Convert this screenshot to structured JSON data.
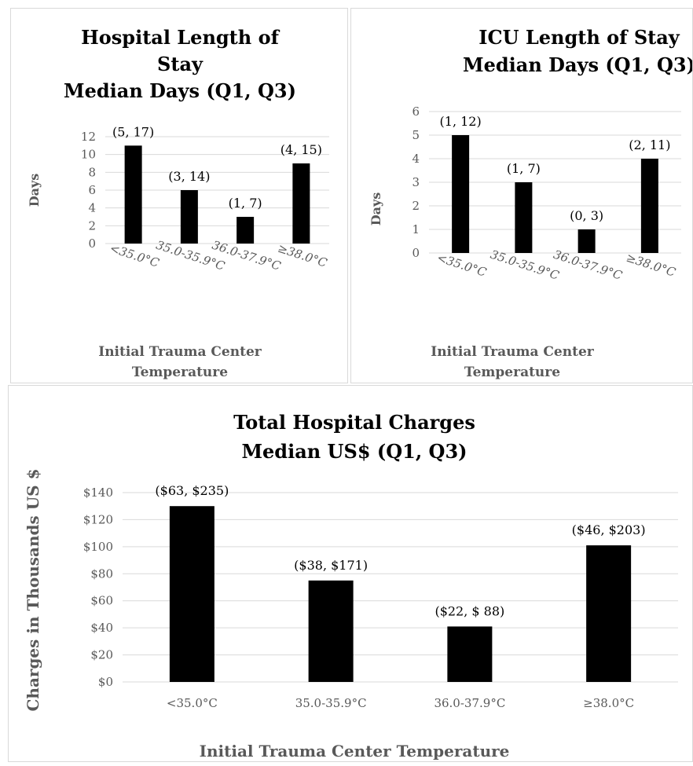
{
  "chart_data": [
    {
      "type": "bar",
      "title_lines": [
        "Hospital Length of",
        "Stay",
        "Median Days (Q1, Q3)"
      ],
      "categories": [
        "<35.0°C",
        "35.0-35.9°C",
        "36.0-37.9°C",
        "≥38.0°C"
      ],
      "values": [
        11,
        6,
        3,
        9
      ],
      "data_labels": [
        "(5, 17)",
        "(3, 14)",
        "(1, 7)",
        "(4, 15)"
      ],
      "ylabel": "Days",
      "xlabel_lines": [
        "Initial Trauma Center",
        "Temperature"
      ],
      "ylim": [
        0,
        12
      ],
      "yticks": [
        "0",
        "2",
        "4",
        "6",
        "8",
        "10",
        "12"
      ],
      "grid": true,
      "legend": "none"
    },
    {
      "type": "bar",
      "title_lines": [
        "ICU Length of Stay",
        "Median Days (Q1, Q3)"
      ],
      "categories": [
        "<35.0°C",
        "35.0-35.9°C",
        "36.0-37.9°C",
        "≥38.0°C"
      ],
      "values": [
        5,
        3,
        1,
        4
      ],
      "data_labels": [
        "(1, 12)",
        "(1, 7)",
        "(0, 3)",
        "(2, 11)"
      ],
      "ylabel": "Days",
      "xlabel_lines": [
        "Initial Trauma Center",
        "Temperature"
      ],
      "ylim": [
        0,
        6
      ],
      "yticks": [
        "0",
        "1",
        "2",
        "3",
        "4",
        "5",
        "6"
      ],
      "grid": true,
      "legend": "none"
    },
    {
      "type": "bar",
      "title_lines": [
        "Total Hospital Charges",
        "Median US$ (Q1, Q3)"
      ],
      "categories": [
        "<35.0°C",
        "35.0-35.9°C",
        "36.0-37.9°C",
        "≥38.0°C"
      ],
      "values": [
        130,
        75,
        41,
        101
      ],
      "data_labels": [
        "($63, $235)",
        "($38, $171)",
        "($22, $ 88)",
        "($46, $203)"
      ],
      "ylabel": "Charges in Thousands  US $",
      "xlabel_lines": [
        "Initial Trauma Center Temperature"
      ],
      "ylim": [
        0,
        140
      ],
      "yticks": [
        "$0",
        "$20",
        "$40",
        "$60",
        "$80",
        "$100",
        "$120",
        "$140"
      ],
      "grid": true,
      "legend": "none"
    }
  ]
}
